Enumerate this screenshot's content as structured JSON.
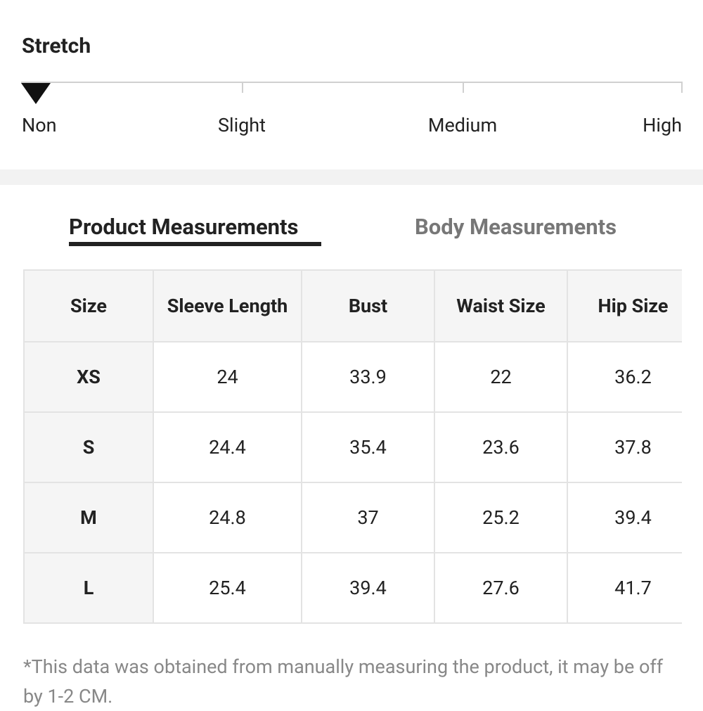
{
  "stretch": {
    "title": "Stretch",
    "levels": [
      "Non",
      "Slight",
      "Medium",
      "High"
    ]
  },
  "tabs": [
    "Product Measurements",
    "Body Measurements"
  ],
  "table": {
    "header": [
      "Size",
      "Sleeve Length",
      "Bust",
      "Waist Size",
      "Hip Size"
    ],
    "rows": [
      [
        "XS",
        24,
        33.9,
        22,
        36.2
      ],
      [
        "S",
        24.4,
        35.4,
        23.6,
        37.8
      ],
      [
        "M",
        24.8,
        37,
        25.2,
        39.4
      ],
      [
        "L",
        25.4,
        39.4,
        27.6,
        41.7
      ]
    ]
  },
  "footnote": "*This data was obtained from manually measuring the product, it may be off by 1-2 CM."
}
